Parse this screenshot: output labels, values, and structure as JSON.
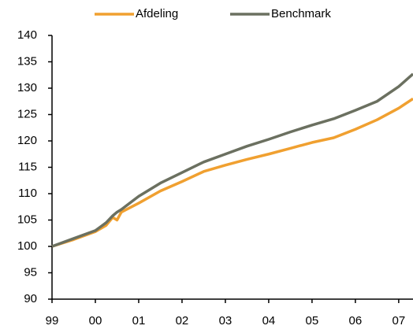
{
  "chart_data": {
    "type": "line",
    "x": [
      1999,
      1999.5,
      2000,
      2000.25,
      2000.4,
      2000.5,
      2000.6,
      2001,
      2001.5,
      2002,
      2002.5,
      2003,
      2003.5,
      2004,
      2004.5,
      2005,
      2005.5,
      2006,
      2006.5,
      2007,
      2007.33
    ],
    "series": [
      {
        "name": "Afdeling",
        "color": "#f0a030",
        "values": [
          100,
          101.3,
          102.8,
          104,
          105.5,
          105,
          106.5,
          108.2,
          110.5,
          112.3,
          114.2,
          115.4,
          116.5,
          117.5,
          118.6,
          119.7,
          120.6,
          122.2,
          124,
          126.2,
          128
        ]
      },
      {
        "name": "Benchmark",
        "color": "#6b7060",
        "values": [
          100,
          101.5,
          103,
          104.5,
          105.8,
          106.5,
          107,
          109.5,
          112,
          114,
          116,
          117.5,
          119,
          120.3,
          121.7,
          123,
          124.2,
          125.8,
          127.5,
          130.3,
          132.7
        ]
      }
    ],
    "xlim": [
      1999,
      2007.33
    ],
    "xticks": [
      {
        "value": 1999,
        "label": "99"
      },
      {
        "value": 2000,
        "label": "00"
      },
      {
        "value": 2001,
        "label": "01"
      },
      {
        "value": 2002,
        "label": "02"
      },
      {
        "value": 2003,
        "label": "03"
      },
      {
        "value": 2004,
        "label": "04"
      },
      {
        "value": 2005,
        "label": "05"
      },
      {
        "value": 2006,
        "label": "06"
      },
      {
        "value": 2007,
        "label": "07"
      }
    ],
    "ylim": [
      90,
      140
    ],
    "yticks": [
      90,
      95,
      100,
      105,
      110,
      115,
      120,
      125,
      130,
      135,
      140
    ]
  }
}
